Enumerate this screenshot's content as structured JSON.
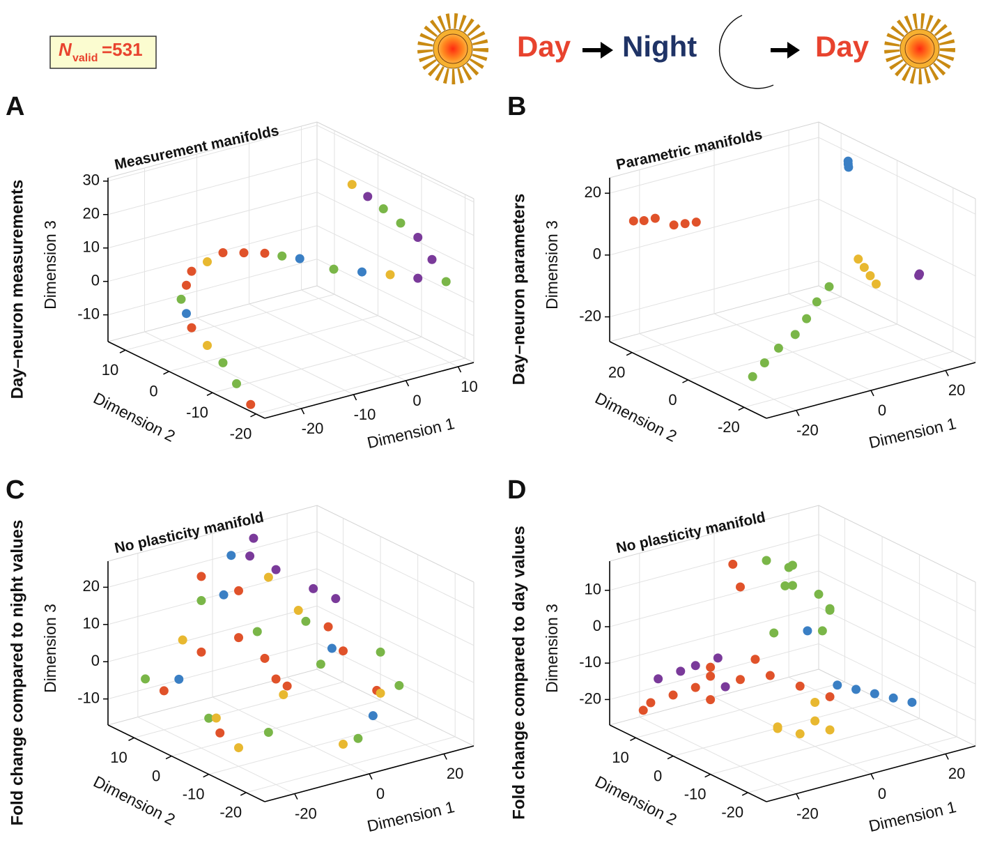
{
  "header": {
    "n_label": "N",
    "n_subscript": "valid",
    "n_value": "=531",
    "phase_1": "Day",
    "phase_2": "Night",
    "phase_3": "Day"
  },
  "chart_data": [
    {
      "type": "scatter3d",
      "panel": "A",
      "title": "Measurement manifolds",
      "side_label": "Day–neuron measurements",
      "xlabel": "Dimension 1",
      "ylabel": "Dimension 2",
      "zlabel": "Dimension 3",
      "xlim": [
        -27,
        13
      ],
      "ylim": [
        -22,
        14
      ],
      "zlim": [
        -18,
        31
      ],
      "xticks": [
        -20,
        -10,
        0,
        10
      ],
      "yticks": [
        -20,
        -10,
        0,
        10
      ],
      "zticks": [
        -10,
        0,
        10,
        20,
        30
      ],
      "grid": true,
      "series": [
        {
          "color": "#e0522a",
          "x": [
            -26.7,
            -26,
            -20,
            -11,
            -3,
            -22.5,
            -7
          ],
          "y": [
            -18.4,
            -4,
            3.2,
            6.8,
            6.8,
            1.4,
            6.8
          ],
          "z": [
            -16.3,
            -2.8,
            7,
            6.5,
            3,
            5,
            4.8
          ]
        },
        {
          "color": "#7ab648",
          "x": [
            -26.4,
            -26,
            -25,
            -7.8,
            7.7,
            7.7,
            8,
            0.3
          ],
          "y": [
            -14.8,
            -11.2,
            -0.4,
            -14.8,
            -22,
            -7.6,
            -11.2,
            6.8
          ],
          "z": [
            -12.5,
            -8.7,
            3,
            14,
            8.4,
            21,
            18.9,
            0.8
          ]
        },
        {
          "color": "#e8b830",
          "x": [
            -26,
            0,
            7.7,
            -15.5
          ],
          "y": [
            -7.6,
            -18.4,
            -0.4,
            5
          ],
          "z": [
            -5.8,
            11.4,
            23.7,
            6.8
          ]
        },
        {
          "color": "#3a7fc4",
          "x": [
            -25.5,
            3.7,
            -3.9
          ],
          "y": [
            -2.2,
            6.8,
            -16.6
          ],
          "z": [
            0.1,
            -1.4,
            12.7
          ]
        },
        {
          "color": "#7a3a9a",
          "x": [
            8.3,
            3.8,
            8,
            7.7
          ],
          "y": [
            -14.8,
            -20.2,
            -18.4,
            -4
          ],
          "z": [
            16.8,
            9.9,
            12.6,
            22.4
          ]
        }
      ]
    },
    {
      "type": "scatter3d",
      "panel": "B",
      "title": "Parametric manifolds",
      "side_label": "Day–neuron parameters",
      "xlabel": "Dimension 1",
      "ylabel": "Dimension 2",
      "zlabel": "Dimension 3",
      "xlim": [
        -28,
        28
      ],
      "ylim": [
        -28,
        28
      ],
      "zlim": [
        -28,
        25
      ],
      "xticks": [
        -20,
        0,
        20
      ],
      "yticks": [
        -20,
        0,
        20
      ],
      "zticks": [
        -20,
        0,
        20
      ],
      "grid": true,
      "series": [
        {
          "color": "#e0522a",
          "x": [
            -25.8,
            -23,
            -20,
            -15,
            -12,
            -9
          ],
          "y": [
            22.4,
            22.4,
            22.4,
            22.4,
            22.4,
            22.4
          ],
          "z": [
            12.8,
            12,
            11.8,
            8,
            7.5,
            7
          ]
        },
        {
          "color": "#3a7fc4",
          "x": [
            27,
            27.5,
            28
          ],
          "y": [
            16,
            16.8,
            17.5
          ],
          "z": [
            16,
            16.5,
            17
          ]
        },
        {
          "color": "#7a3a9a",
          "x": [
            27.5,
            28
          ],
          "y": [
            -8.4,
            -8
          ],
          "z": [
            -8.4,
            -8.2
          ]
        },
        {
          "color": "#e8b830",
          "x": [
            17.6,
            19.2,
            20.8,
            22.4
          ],
          "y": [
            0,
            0,
            0,
            0
          ],
          "z": [
            -3.6,
            -6.8,
            -10,
            -13.2
          ]
        },
        {
          "color": "#7ab648",
          "x": [
            -23.3,
            -18,
            -12,
            -5.6,
            0,
            5,
            9.8
          ],
          "y": [
            -16.8,
            -14,
            -11,
            -8.4,
            -5,
            -2,
            0
          ],
          "z": [
            -21,
            -19.5,
            -18,
            -16.8,
            -15,
            -12.5,
            -10
          ]
        }
      ]
    },
    {
      "type": "scatter3d",
      "panel": "C",
      "title": "No plasticity manifold",
      "side_label": "Fold change compared to night values",
      "xlabel": "Dimension 1",
      "ylabel": "Dimension 2",
      "zlabel": "Dimension 3",
      "xlim": [
        -28,
        28
      ],
      "ylim": [
        -25,
        17
      ],
      "zlim": [
        -17,
        27
      ],
      "xticks": [
        -20,
        0,
        20
      ],
      "yticks": [
        -20,
        -10,
        0,
        10
      ],
      "zticks": [
        -10,
        0,
        10,
        20
      ],
      "grid": true,
      "series": [
        {
          "color": "#e0522a",
          "x": [
            -22,
            -15,
            -10,
            -5,
            0,
            5,
            10,
            15,
            -18,
            -8,
            3,
            12
          ],
          "y": [
            8,
            5,
            0,
            -5,
            10,
            2,
            -8,
            -12,
            -3,
            12,
            6,
            -2
          ],
          "z": [
            -5,
            5,
            10,
            0,
            15,
            -8,
            5,
            -5,
            -12,
            20,
            -2,
            8
          ]
        },
        {
          "color": "#7ab648",
          "x": [
            -25,
            -12,
            -2,
            8,
            18,
            -6,
            4,
            -20,
            14,
            20
          ],
          "y": [
            10,
            -10,
            3,
            -4,
            -15,
            14,
            -18,
            -2,
            6,
            -8
          ],
          "z": [
            -2,
            -10,
            8,
            0,
            -3,
            12,
            -12,
            -8,
            5,
            2
          ]
        },
        {
          "color": "#e8b830",
          "x": [
            -16,
            -4,
            6,
            16,
            -10,
            2,
            -20,
            10
          ],
          "y": [
            0,
            -6,
            8,
            -12,
            15,
            -16,
            -10,
            4
          ],
          "z": [
            -10,
            -4,
            18,
            -6,
            2,
            -14,
            -12,
            10
          ]
        },
        {
          "color": "#3a7fc4",
          "x": [
            -8,
            5,
            -14,
            12,
            2
          ],
          "y": [
            6,
            -10,
            12,
            -14,
            14
          ],
          "z": [
            18,
            8,
            -6,
            -10,
            22
          ]
        },
        {
          "color": "#7a3a9a",
          "x": [
            5,
            10,
            15,
            18,
            8
          ],
          "y": [
            12,
            10,
            5,
            2,
            14
          ],
          "z": [
            22,
            18,
            14,
            12,
            25
          ]
        }
      ]
    },
    {
      "type": "scatter3d",
      "panel": "D",
      "title": "No plasticity manifold",
      "side_label": "Fold change compared to day values",
      "xlabel": "Dimension 1",
      "ylabel": "Dimension 2",
      "zlabel": "Dimension 3",
      "xlim": [
        -28,
        28
      ],
      "ylim": [
        -25,
        17
      ],
      "zlim": [
        -27,
        18
      ],
      "xticks": [
        -20,
        0,
        20
      ],
      "yticks": [
        -20,
        -10,
        0,
        10
      ],
      "zticks": [
        -20,
        -10,
        0,
        10
      ],
      "grid": true,
      "series": [
        {
          "color": "#7ab648",
          "x": [
            2,
            6,
            10,
            4,
            8,
            12,
            14,
            16,
            10,
            6
          ],
          "y": [
            5,
            3,
            6,
            2,
            4,
            1,
            0,
            2,
            -2,
            7
          ],
          "z": [
            16,
            14,
            12,
            10,
            8,
            6,
            2,
            0,
            -2,
            -6
          ]
        },
        {
          "color": "#e0522a",
          "x": [
            -26,
            -22,
            -18,
            -14,
            -10,
            -6,
            -2,
            2,
            6,
            -12,
            -4,
            -8,
            0,
            1
          ],
          "y": [
            10,
            12,
            10,
            8,
            8,
            4,
            0,
            -4,
            -8,
            6,
            2,
            10,
            12,
            11
          ],
          "z": [
            -20,
            -20,
            -18,
            -16,
            -14,
            -14,
            -12,
            -14,
            -16,
            -10,
            -8,
            -22,
            12,
            6
          ]
        },
        {
          "color": "#7a3a9a",
          "x": [
            -20,
            -16,
            -14,
            -10,
            -6
          ],
          "y": [
            12,
            10,
            8,
            6,
            8
          ],
          "z": [
            -14,
            -12,
            -10,
            -8,
            -18
          ]
        },
        {
          "color": "#e8b830",
          "x": [
            -6,
            -2,
            0,
            2,
            4,
            -4
          ],
          "y": [
            -6,
            -8,
            -10,
            -12,
            -6,
            -4
          ],
          "z": [
            -22,
            -24,
            -20,
            -22,
            -18,
            -24
          ]
        },
        {
          "color": "#3a7fc4",
          "x": [
            14,
            17,
            20,
            23,
            26,
            10
          ],
          "y": [
            -2,
            -4,
            -6,
            -8,
            -10,
            2
          ],
          "z": [
            -18,
            -19,
            -20,
            -21,
            -22,
            -4
          ]
        }
      ]
    }
  ]
}
